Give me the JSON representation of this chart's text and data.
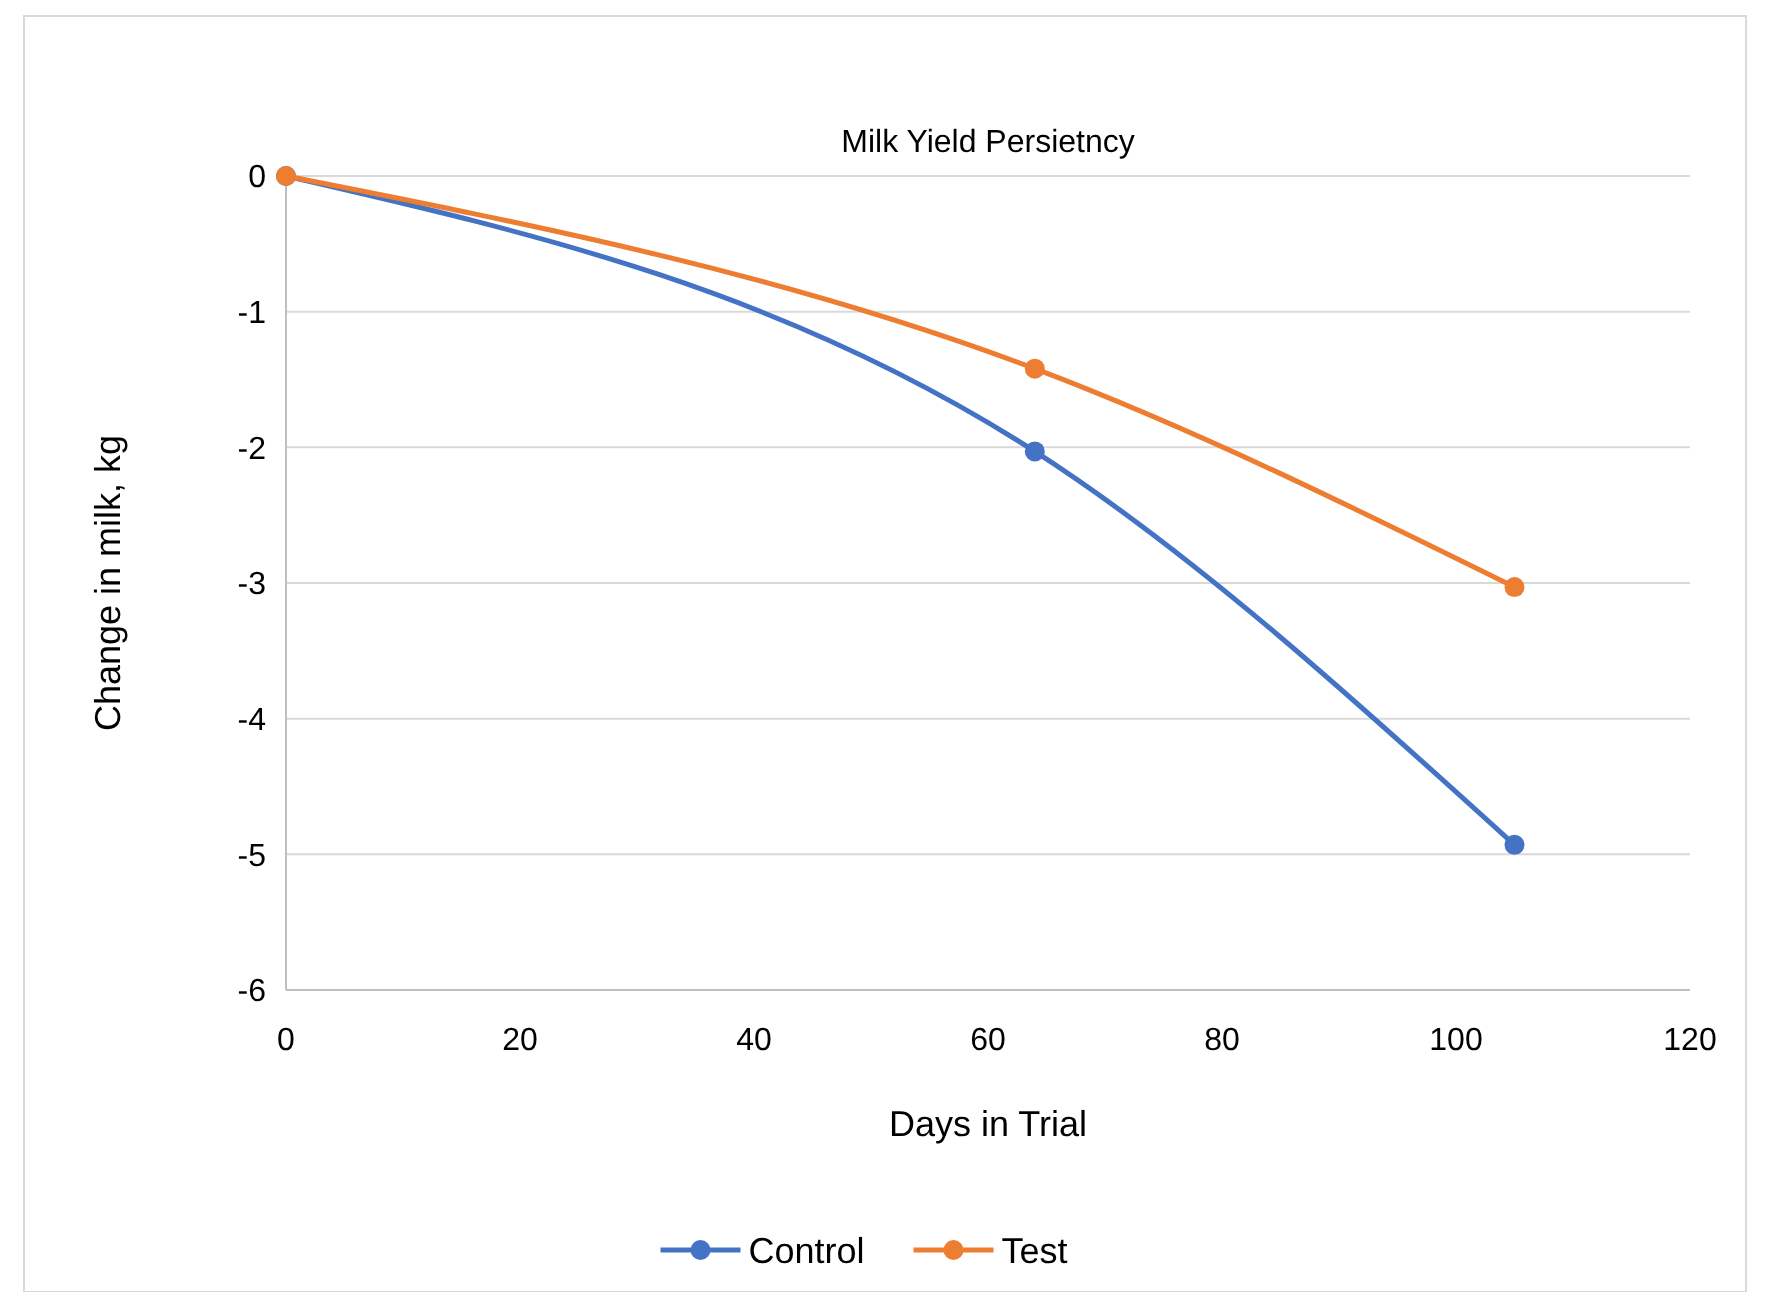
{
  "chart_data": {
    "type": "line",
    "title": "Milk Yield Persietncy",
    "xlabel": "Days in Trial",
    "ylabel": "Change in milk, kg",
    "x": [
      0,
      64,
      105
    ],
    "series": [
      {
        "name": "Control",
        "color": "#4472c4",
        "values": [
          0,
          -2.03,
          -4.93
        ]
      },
      {
        "name": "Test",
        "color": "#ed7d31",
        "values": [
          0,
          -1.42,
          -3.03
        ]
      }
    ],
    "xlim": [
      0,
      120
    ],
    "xticks": [
      0,
      20,
      40,
      60,
      80,
      100,
      120
    ],
    "ylim": [
      -6,
      0
    ],
    "yticks": [
      -6,
      -5,
      -4,
      -3,
      -2,
      -1,
      0
    ],
    "grid": "y",
    "legend": "bottom",
    "marker": "circle",
    "line_style": "solid"
  }
}
